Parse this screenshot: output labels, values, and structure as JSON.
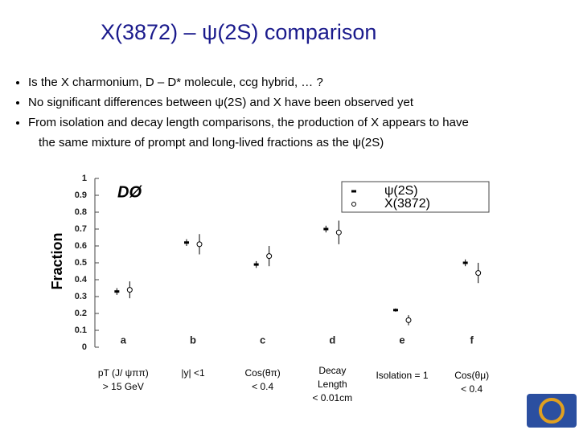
{
  "slide": {
    "title": "X(3872) – ψ(2S) comparison",
    "bullets": [
      [
        "Is the X charmonium,  D – D*  molecule, ccg hybrid, … ?"
      ],
      [
        "No significant differences between ψ(2S) and X have been observed yet"
      ],
      [
        "From isolation and decay length comparisons, the production of X appears to have",
        "the same mixture of prompt and long-lived fractions as the ψ(2S)"
      ]
    ],
    "criteria": [
      [
        "pT (J/ ψππ)",
        "> 15 GeV"
      ],
      [
        "|y| <1"
      ],
      [
        "Cos(θπ)",
        "< 0.4"
      ],
      [
        "Decay",
        "Length",
        "< 0.01cm"
      ],
      [
        "Isolation = 1"
      ],
      [
        "Cos(θμ)",
        "< 0.4"
      ]
    ]
  },
  "chart_data": {
    "type": "errorbar",
    "experiment": "DØ",
    "ylabel": "Fraction",
    "categories": [
      "a",
      "b",
      "c",
      "d",
      "e",
      "f"
    ],
    "series": [
      {
        "name": "ψ(2S)",
        "color": "#000000",
        "marker": "filled",
        "values": [
          0.33,
          0.62,
          0.49,
          0.7,
          0.22,
          0.5
        ],
        "errors": [
          0.02,
          0.02,
          0.02,
          0.02,
          0.01,
          0.02
        ]
      },
      {
        "name": "X(3872)",
        "color": "#000000",
        "marker": "open",
        "values": [
          0.34,
          0.61,
          0.54,
          0.68,
          0.16,
          0.44
        ],
        "errors": [
          0.05,
          0.06,
          0.06,
          0.07,
          0.03,
          0.06
        ]
      }
    ],
    "ylim": [
      0,
      1
    ],
    "yticks": [
      0,
      0.1,
      0.2,
      0.3,
      0.4,
      0.5,
      0.6,
      0.7,
      0.8,
      0.9,
      1
    ],
    "legend": "upper right"
  }
}
